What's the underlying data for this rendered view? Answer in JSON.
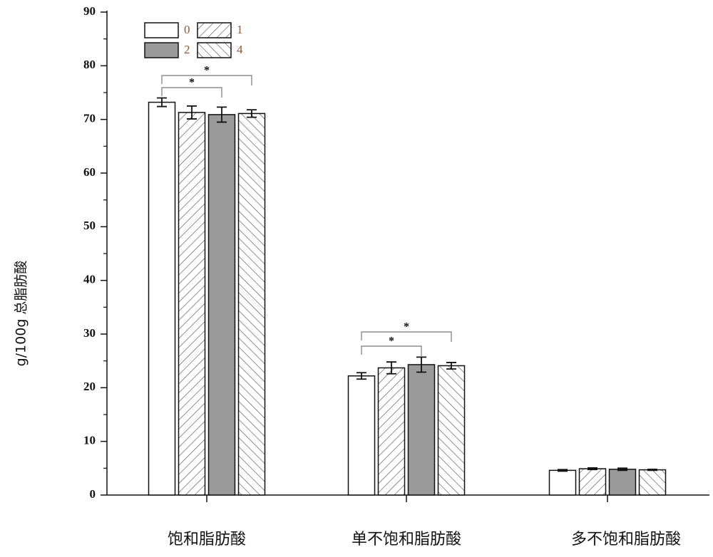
{
  "chart_data": {
    "type": "bar",
    "y_label": "g/100g 总脂肪酸",
    "categories": [
      "饱和脂肪酸",
      "单不饱和脂肪酸",
      "多不饱和脂肪酸"
    ],
    "series": [
      {
        "name": "0",
        "color": "#ffffff",
        "hatch": "none",
        "values": [
          73.2,
          22.2,
          4.6
        ],
        "errors": [
          0.8,
          0.6,
          0.15
        ]
      },
      {
        "name": "1",
        "color": "#ffffff",
        "hatch": "forward",
        "values": [
          71.3,
          23.7,
          4.9
        ],
        "errors": [
          1.2,
          1.1,
          0.15
        ]
      },
      {
        "name": "2",
        "color": "#9a9a9a",
        "hatch": "none",
        "values": [
          70.9,
          24.3,
          4.8
        ],
        "errors": [
          1.4,
          1.4,
          0.2
        ]
      },
      {
        "name": "4",
        "color": "#ffffff",
        "hatch": "back",
        "values": [
          71.1,
          24.1,
          4.7
        ],
        "errors": [
          0.7,
          0.6,
          0.1
        ]
      }
    ],
    "annotations": [
      "*",
      "*",
      "*",
      "*"
    ],
    "ylim": [
      0,
      90
    ],
    "yticks": [
      0,
      10,
      20,
      30,
      40,
      50,
      60,
      70,
      80,
      90
    ]
  }
}
